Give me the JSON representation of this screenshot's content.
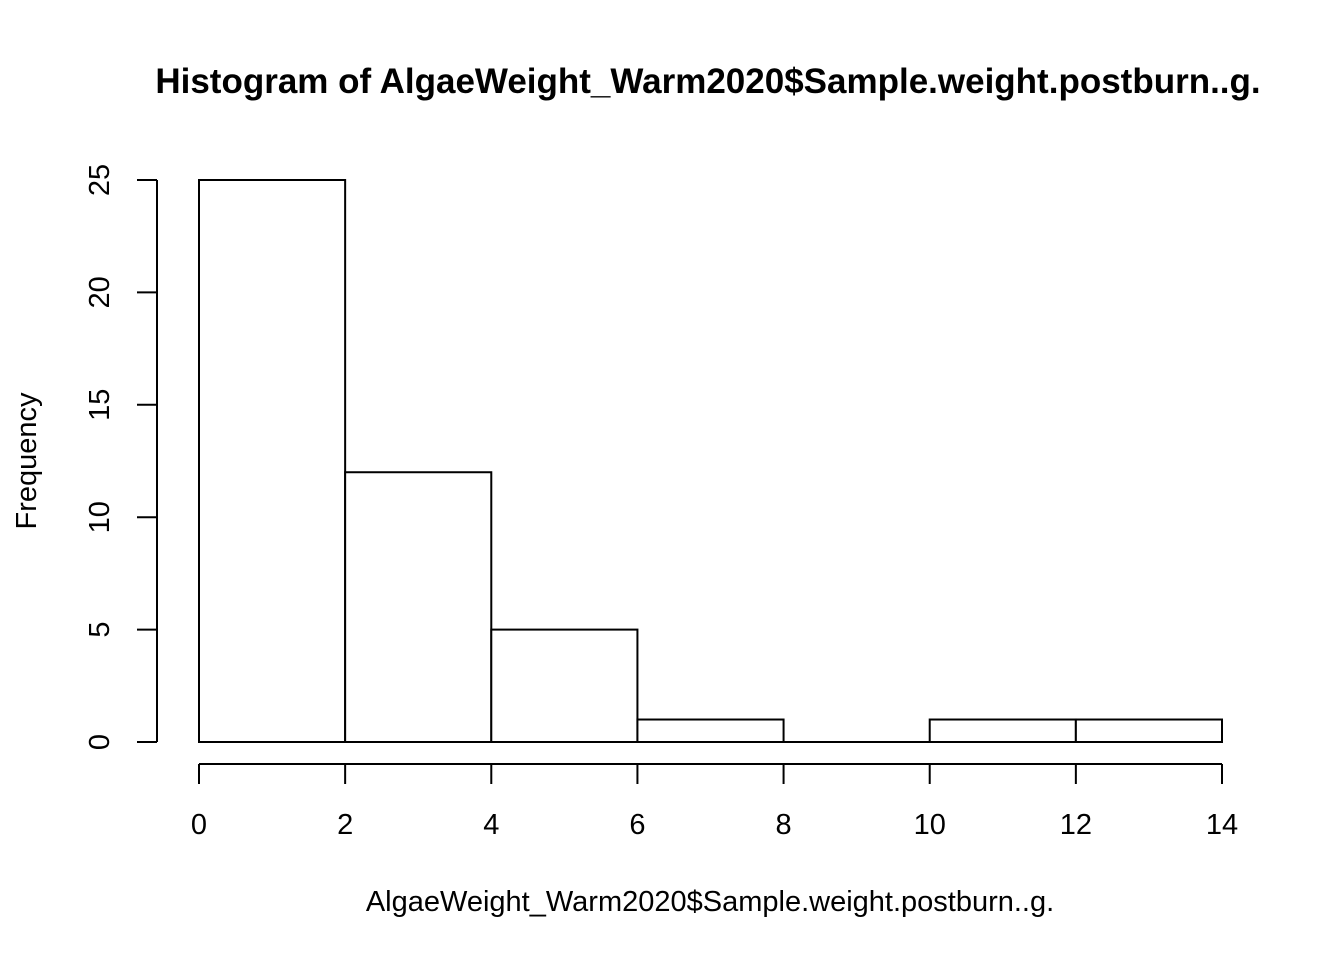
{
  "chart_data": {
    "type": "bar",
    "title": "Histogram of AlgaeWeight_Warm2020$Sample.weight.postburn..g.",
    "xlabel": "AlgaeWeight_Warm2020$Sample.weight.postburn..g.",
    "ylabel": "Frequency",
    "bins": [
      {
        "start": 0,
        "end": 2,
        "count": 25
      },
      {
        "start": 2,
        "end": 4,
        "count": 12
      },
      {
        "start": 4,
        "end": 6,
        "count": 5
      },
      {
        "start": 6,
        "end": 8,
        "count": 1
      },
      {
        "start": 8,
        "end": 10,
        "count": 0
      },
      {
        "start": 10,
        "end": 12,
        "count": 1
      },
      {
        "start": 12,
        "end": 14,
        "count": 1
      }
    ],
    "xlim": [
      0,
      14
    ],
    "ylim": [
      0,
      25
    ],
    "x_ticks": [
      "0",
      "2",
      "4",
      "6",
      "8",
      "10",
      "12",
      "14"
    ],
    "y_ticks": [
      "0",
      "5",
      "10",
      "15",
      "20",
      "25"
    ],
    "grid": false,
    "legend": "none",
    "bar_fill": "#ffffff",
    "bar_stroke": "#000000"
  }
}
